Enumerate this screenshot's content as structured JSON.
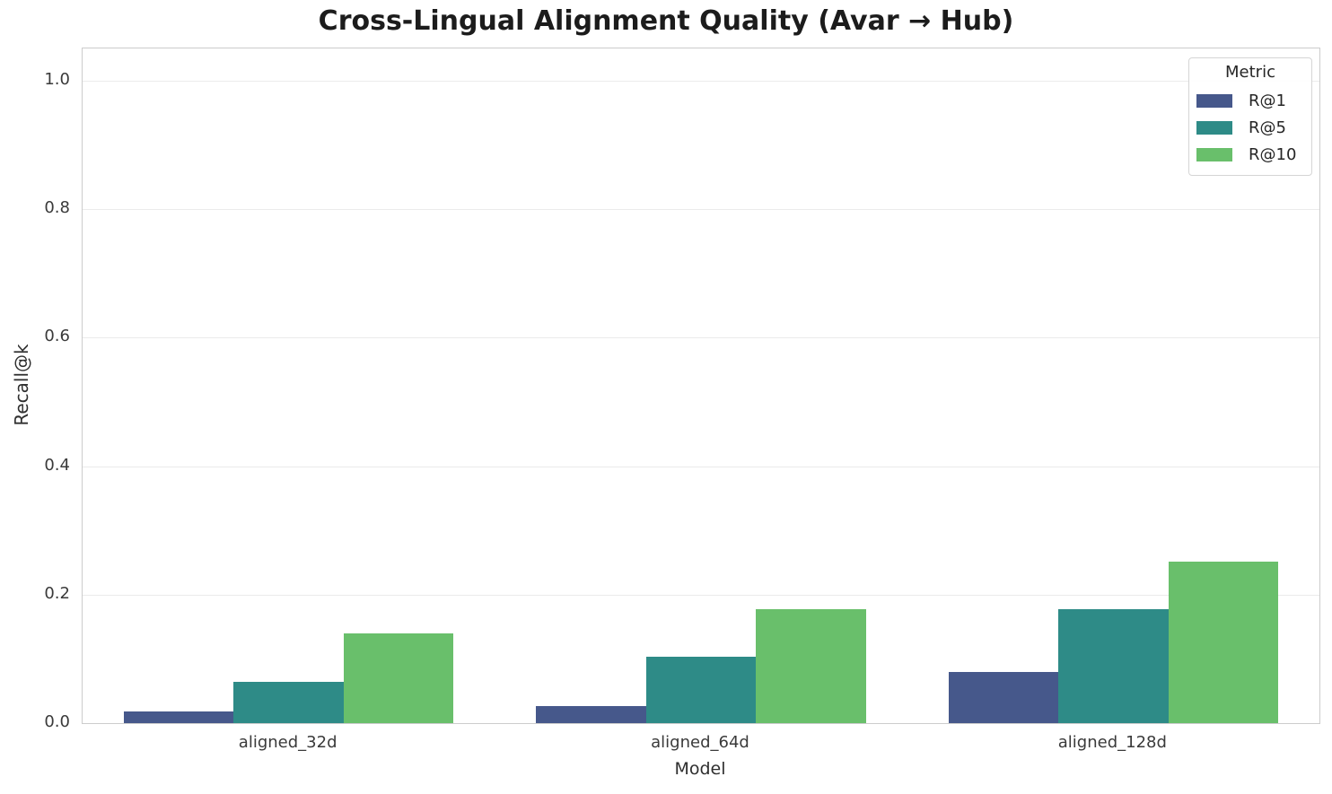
{
  "chart_data": {
    "type": "bar",
    "title": "Cross-Lingual Alignment Quality (Avar → Hub)",
    "xlabel": "Model",
    "ylabel": "Recall@k",
    "categories": [
      "aligned_32d",
      "aligned_64d",
      "aligned_128d"
    ],
    "series": [
      {
        "name": "R@1",
        "color": "#46588b",
        "values": [
          0.018,
          0.027,
          0.08
        ]
      },
      {
        "name": "R@5",
        "color": "#2e8b87",
        "values": [
          0.064,
          0.104,
          0.178
        ]
      },
      {
        "name": "R@10",
        "color": "#69bf6b",
        "values": [
          0.139,
          0.178,
          0.252
        ]
      }
    ],
    "ylim": [
      0,
      1.05
    ],
    "yticks": [
      {
        "value": 0.0,
        "label": "0.0"
      },
      {
        "value": 0.2,
        "label": "0.2"
      },
      {
        "value": 0.4,
        "label": "0.4"
      },
      {
        "value": 0.6,
        "label": "0.6"
      },
      {
        "value": 0.8,
        "label": "0.8"
      },
      {
        "value": 1.0,
        "label": "1.0"
      }
    ],
    "grid": "horizontal",
    "legend": {
      "title": "Metric",
      "position": "upper right",
      "entries": [
        "R@1",
        "R@5",
        "R@10"
      ]
    },
    "bar_group_width_fraction": 0.8
  }
}
